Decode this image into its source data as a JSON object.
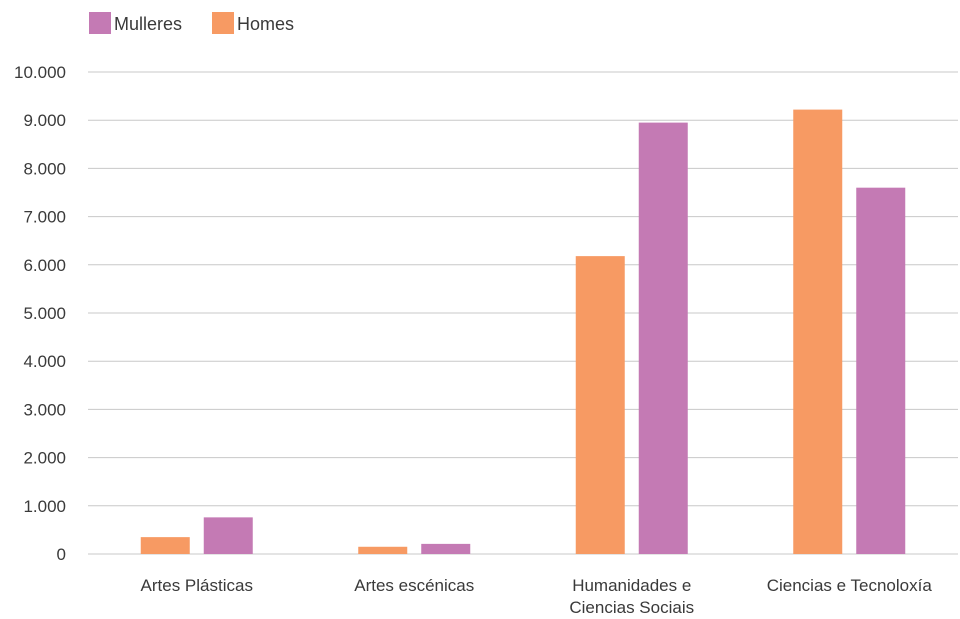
{
  "chart_data": {
    "type": "bar",
    "categories": [
      [
        "Artes Plásticas"
      ],
      [
        "Artes escénicas"
      ],
      [
        "Humanidades e",
        "Ciencias Sociais"
      ],
      [
        "Ciencias e Tecnoloxía"
      ]
    ],
    "series": [
      {
        "name": "Homes",
        "color": "#f79a63",
        "values": [
          350,
          150,
          6180,
          9220
        ]
      },
      {
        "name": "Mulleres",
        "color": "#c47ab4",
        "values": [
          760,
          210,
          8950,
          7600
        ]
      }
    ],
    "legend_order": [
      "Mulleres",
      "Homes"
    ],
    "legend_position": "top-left",
    "ylim": [
      0,
      10000
    ],
    "yticks": [
      0,
      1000,
      2000,
      3000,
      4000,
      5000,
      6000,
      7000,
      8000,
      9000,
      10000
    ],
    "ytick_labels": [
      "0",
      "1.000",
      "2.000",
      "3.000",
      "4.000",
      "5.000",
      "6.000",
      "7.000",
      "8.000",
      "9.000",
      "10.000"
    ],
    "grid": true,
    "grid_color": "#c8c8c8"
  }
}
